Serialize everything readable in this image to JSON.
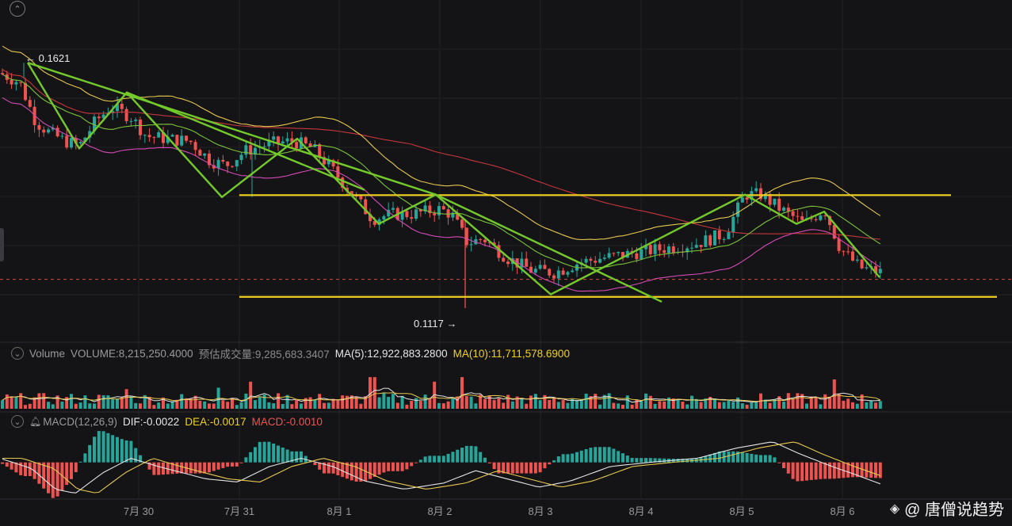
{
  "colors": {
    "up": "#26a69a",
    "down": "#ef5350",
    "band_upper": "#e6c84e",
    "band_mid": "#7cc23a",
    "band_lower": "#d44bb5",
    "ma_long": "#c6373b",
    "trend": "#74c92b",
    "level": "#f0d11f",
    "price_line": "#d9473f",
    "dif": "#e3e3e3",
    "dea": "#e6c84e"
  },
  "toolbar": {
    "collapse_icon": "chevron-up-circle-icon"
  },
  "price_panel": {
    "high_label": "← 0.1621",
    "low_label": "0.1117 →"
  },
  "volume_panel": {
    "title": "Volume",
    "volume": "VOLUME:8,215,250.4000",
    "estimated": "预估成交量:9,285,683.3407",
    "ma5": "MA(5):12,922,883.2800",
    "ma10": "MA(10):11,711,578.6900"
  },
  "macd_panel": {
    "title": "MACD(12,26,9)",
    "dif": "DIF:-0.0022",
    "dea": "DEA:-0.0017",
    "macd": "MACD:-0.0010"
  },
  "watermark": {
    "text": "@ 唐僧说趋势",
    "icon": "binance-square-icon"
  },
  "chart_data": {
    "type": "candlestick",
    "x_ticks": [
      "7月 30",
      "7月 31",
      "8月 1",
      "8月 2",
      "8月 3",
      "8月 4",
      "8月 5",
      "8月 6"
    ],
    "price_annotations": {
      "high": 0.1621,
      "low": 0.1117
    },
    "price_waypoints": [
      [
        0,
        0.16
      ],
      [
        25,
        0.158
      ],
      [
        45,
        0.15
      ],
      [
        60,
        0.148
      ],
      [
        82,
        0.146
      ],
      [
        100,
        0.145
      ],
      [
        120,
        0.15
      ],
      [
        140,
        0.153
      ],
      [
        165,
        0.151
      ],
      [
        185,
        0.147
      ],
      [
        210,
        0.1465
      ],
      [
        240,
        0.146
      ],
      [
        265,
        0.142
      ],
      [
        285,
        0.141
      ],
      [
        310,
        0.144
      ],
      [
        340,
        0.1455
      ],
      [
        370,
        0.146
      ],
      [
        395,
        0.1445
      ],
      [
        420,
        0.14
      ],
      [
        450,
        0.134
      ],
      [
        470,
        0.13
      ],
      [
        495,
        0.131
      ],
      [
        520,
        0.131
      ],
      [
        555,
        0.132
      ],
      [
        570,
        0.131
      ],
      [
        590,
        0.125
      ],
      [
        610,
        0.126
      ],
      [
        640,
        0.122
      ],
      [
        670,
        0.1195
      ],
      [
        700,
        0.119
      ],
      [
        730,
        0.121
      ],
      [
        760,
        0.122
      ],
      [
        800,
        0.123
      ],
      [
        840,
        0.124
      ],
      [
        880,
        0.125
      ],
      [
        915,
        0.127
      ],
      [
        940,
        0.135
      ],
      [
        960,
        0.135
      ],
      [
        985,
        0.132
      ],
      [
        1015,
        0.129
      ],
      [
        1040,
        0.132
      ],
      [
        1060,
        0.124
      ],
      [
        1085,
        0.12
      ],
      [
        1112,
        0.119
      ]
    ],
    "price_axis": {
      "min": 0.105,
      "max": 0.175
    },
    "horizontal_levels": [
      0.1349,
      0.114
    ],
    "current_price": 0.1176,
    "trendlines": [
      [
        [
          35,
          0.1621
        ],
        [
          100,
          0.1445
        ],
        [
          160,
          0.156
        ],
        [
          280,
          0.1345
        ],
        [
          375,
          0.1465
        ],
        [
          478,
          0.129
        ],
        [
          550,
          0.135
        ],
        [
          695,
          0.1145
        ],
        [
          940,
          0.135
        ],
        [
          1005,
          0.129
        ],
        [
          1040,
          0.1315
        ],
        [
          1110,
          0.118
        ]
      ],
      [
        [
          35,
          0.1621
        ],
        [
          550,
          0.135
        ]
      ],
      [
        [
          160,
          0.156
        ],
        [
          460,
          0.136
        ]
      ],
      [
        [
          550,
          0.135
        ],
        [
          835,
          0.113
        ]
      ]
    ],
    "volume_spikes": [
      [
        470,
        4.2
      ],
      [
        585,
        4.2
      ],
      [
        1052,
        3.9
      ],
      [
        318,
        3.6
      ],
      [
        548,
        3.6
      ],
      [
        275,
        2.8
      ],
      [
        160,
        2.6
      ]
    ],
    "macd_waypoints": [
      [
        0,
        0.0004
      ],
      [
        40,
        -0.0006
      ],
      [
        70,
        -0.0026
      ],
      [
        95,
        -0.003
      ],
      [
        130,
        -0.001
      ],
      [
        165,
        0.0004
      ],
      [
        200,
        -0.0004
      ],
      [
        260,
        -0.0016
      ],
      [
        300,
        -0.0019
      ],
      [
        340,
        -0.0004
      ],
      [
        380,
        0.0004
      ],
      [
        420,
        -0.0004
      ],
      [
        460,
        -0.0018
      ],
      [
        510,
        -0.0026
      ],
      [
        560,
        -0.002
      ],
      [
        600,
        -0.0008
      ],
      [
        640,
        -0.0016
      ],
      [
        680,
        -0.0024
      ],
      [
        720,
        -0.0018
      ],
      [
        770,
        -0.0004
      ],
      [
        820,
        0.0
      ],
      [
        880,
        0.0004
      ],
      [
        930,
        0.0014
      ],
      [
        975,
        0.002
      ],
      [
        1010,
        0.0008
      ],
      [
        1050,
        -0.0004
      ],
      [
        1080,
        -0.0012
      ],
      [
        1115,
        -0.0022
      ]
    ],
    "macd_axis": {
      "min": -0.0034,
      "max": 0.0032
    }
  }
}
